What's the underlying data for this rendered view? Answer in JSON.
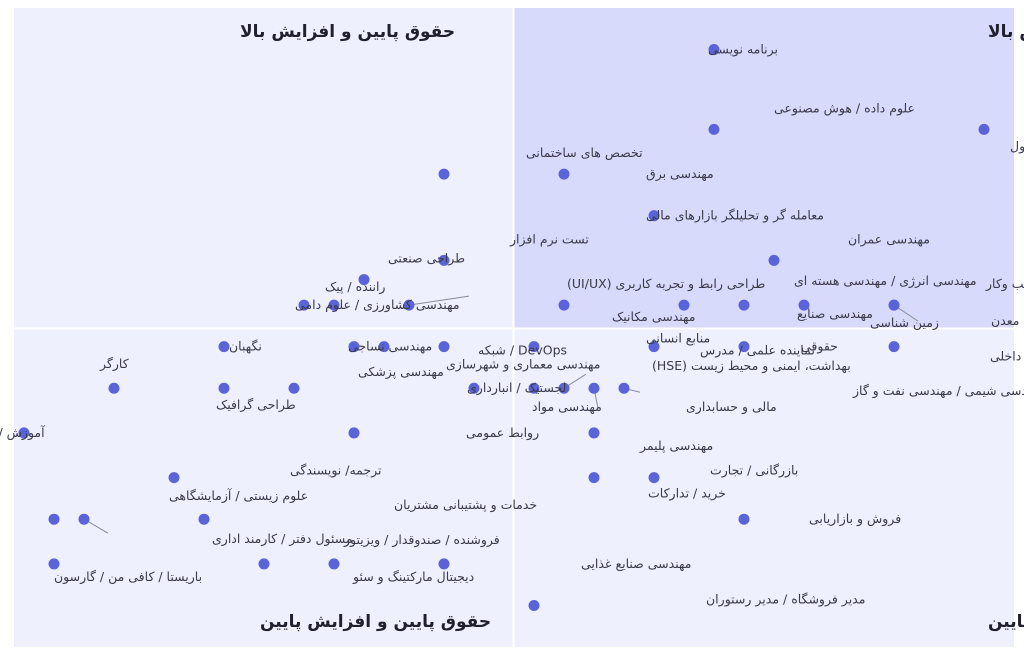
{
  "chart_data": {
    "type": "scatter",
    "title": "",
    "xlabel": "",
    "ylabel": "",
    "xlim": [
      -10,
      10
    ],
    "ylim": [
      -10,
      10
    ],
    "grid": false,
    "colors": {
      "point": "#5a63d8",
      "quadrant_top_right": "#d8dafc",
      "quadrant_other": "#eef0fd",
      "divider": "#ffffff"
    },
    "quadrants": {
      "top_right": "حقوق بالا و افزایش بالا",
      "top_left": "حقوق پایین و افزایش بالا",
      "bottom_left": "حقوق پایین و افزایش پایین",
      "bottom_right": "حقوق بالا و افزایش پایین"
    },
    "points": [
      {
        "label": "برنامه نویسی",
        "x": 4.0,
        "y": 8.7
      },
      {
        "label": "علوم داده / هوش مصنوعی",
        "x": 4.0,
        "y": 6.2
      },
      {
        "label": "مدیر محصول / مالک محصول",
        "x": 9.4,
        "y": 6.2
      },
      {
        "label": "تخصص های ساختمانی",
        "x": -1.4,
        "y": 4.8
      },
      {
        "label": "مهندسی برق",
        "x": 1.0,
        "y": 4.8
      },
      {
        "label": "معامله گر و تحلیلگر بازارهای مالی",
        "x": 2.8,
        "y": 3.5
      },
      {
        "label": "مهندسی عمران",
        "x": 5.2,
        "y": 2.1
      },
      {
        "label": "تست نرم افزار",
        "x": -1.4,
        "y": 2.1
      },
      {
        "label": "طراحی صنعتی",
        "x": -3.0,
        "y": 1.5
      },
      {
        "label": "طراحی رابط و تجربه کاربری (UI/UX)",
        "x": -2.1,
        "y": 0.7
      },
      {
        "label": "راننده / پیک",
        "x": -3.6,
        "y": 0.7
      },
      {
        "label": "مهندسی کشاورزی / علوم دامی",
        "x": -4.2,
        "y": 0.7
      },
      {
        "label": "مهندسی معماری و شهرسازی",
        "x": -2.6,
        "y": -0.6
      },
      {
        "label": "مهندسی انرژی / مهندسی هسته ای",
        "x": 3.4,
        "y": 0.7
      },
      {
        "label": "مهندسی صنایع",
        "x": 4.6,
        "y": 0.7
      },
      {
        "label": "زمین شناسی",
        "x": 5.8,
        "y": 0.7
      },
      {
        "label": "تحلیل و توسعه کسب وکار",
        "x": 7.6,
        "y": 0.7
      },
      {
        "label": "مهندسی معدن",
        "x": 7.6,
        "y": 0.7
      },
      {
        "label": "مهندسی مکانیک",
        "x": 1.0,
        "y": 0.7
      },
      {
        "label": "نگهبان",
        "x": -5.8,
        "y": -0.6
      },
      {
        "label": "مهندسی نساجی",
        "x": -3.2,
        "y": -0.6
      },
      {
        "label": "DevOps / شبکه",
        "x": -1.4,
        "y": -0.6
      },
      {
        "label": "نماینده علمی / مدرس",
        "x": 0.4,
        "y": -0.6
      },
      {
        "label": "منابع انسانی",
        "x": 2.8,
        "y": -0.6
      },
      {
        "label": "حقوقی",
        "x": 4.6,
        "y": -0.6
      },
      {
        "label": "مدیر اجرایی / مدیر داخلی",
        "x": 7.6,
        "y": -0.6
      },
      {
        "label": "کارگر",
        "x": -8.0,
        "y": -1.9
      },
      {
        "label": "طراحی گرافیک",
        "x": -5.8,
        "y": -1.9
      },
      {
        "label": "مهندسی پزشکی",
        "x": -4.4,
        "y": -1.9
      },
      {
        "label": "لجستیک / انبارداری",
        "x": -0.8,
        "y": -1.9
      },
      {
        "label": "مهندسی مواد",
        "x": 0.4,
        "y": -1.9
      },
      {
        "label": "بهداشت، ایمنی و محیط زیست (HSE)",
        "x": 1.0,
        "y": -1.9
      },
      {
        "label": "مالی و حسابداری",
        "x": 1.6,
        "y": -1.9
      },
      {
        "label": "مهندسی شیمی / مهندسی نفت و گاز",
        "x": 2.2,
        "y": -1.9
      },
      {
        "label": "آموزش / تدریس",
        "x": -9.8,
        "y": -3.3
      },
      {
        "label": "روابط عمومی",
        "x": -3.2,
        "y": -3.3
      },
      {
        "label": "مهندسی پلیمر",
        "x": 1.6,
        "y": -3.3
      },
      {
        "label": "ترجمه/ نویسندگی",
        "x": -6.8,
        "y": -4.7
      },
      {
        "label": "بازرگانی / تجارت",
        "x": 2.8,
        "y": -4.7
      },
      {
        "label": "خرید / تدارکات",
        "x": 1.6,
        "y": -4.7
      },
      {
        "label": "علوم زیستی / آزمایشگاهی",
        "x": -9.2,
        "y": -6.0
      },
      {
        "label": "مسئول دفتر / کارمند اداری",
        "x": -8.6,
        "y": -6.0
      },
      {
        "label": "خدمات و پشتیبانی مشتریان",
        "x": -6.2,
        "y": -6.0
      },
      {
        "label": "فروش و بازاریابی",
        "x": 4.6,
        "y": -6.0
      },
      {
        "label": "فروشنده / صندوقدار / ویزیتور",
        "x": -3.6,
        "y": -7.4
      },
      {
        "label": "باریستا / کافی من / گارسون",
        "x": -9.2,
        "y": -7.4
      },
      {
        "label": "دیجیتال مارکتینگ و سئو",
        "x": -5.0,
        "y": -7.4
      },
      {
        "label": "مهندسی صنایع غذایی",
        "x": -1.4,
        "y": -7.4
      },
      {
        "label": "مدیر فروشگاه / مدیر رستوران",
        "x": 0.4,
        "y": -8.7
      }
    ]
  }
}
